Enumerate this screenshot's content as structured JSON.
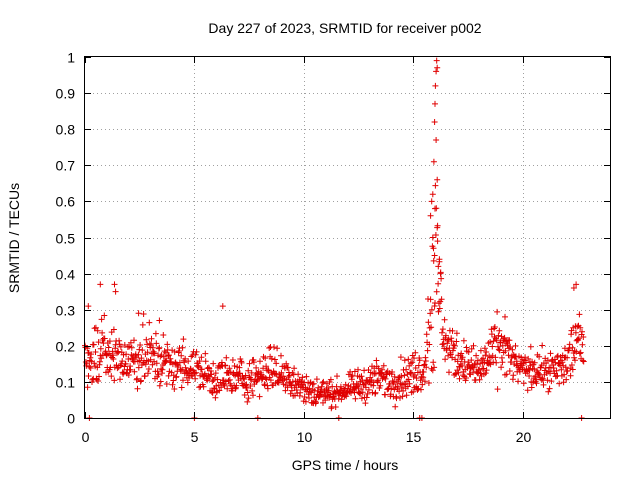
{
  "chart_data": {
    "type": "scatter",
    "title": "Day 227 of 2023, SRMTID for receiver p002",
    "xlabel": "GPS time / hours",
    "ylabel": "SRMTID / TECUs",
    "xlim": [
      0,
      24
    ],
    "ylim": [
      0,
      1
    ],
    "x_ticks": [
      0,
      5,
      10,
      15,
      20
    ],
    "x_tick_labels": [
      "0",
      "5",
      "10",
      "15",
      "20"
    ],
    "y_ticks": [
      0,
      0.1,
      0.2,
      0.3,
      0.4,
      0.5,
      0.6,
      0.7,
      0.8,
      0.9,
      1
    ],
    "y_tick_labels": [
      "0",
      "0.1",
      "0.2",
      "0.3",
      "0.4",
      "0.5",
      "0.6",
      "0.7",
      "0.8",
      "0.9",
      "1"
    ],
    "grid": true,
    "marker": "plus",
    "series_color": "#e00000",
    "series": [
      {
        "name": "p002",
        "profile": {
          "hours": [
            0.0,
            0.5,
            1.0,
            1.5,
            2.0,
            2.5,
            3.0,
            3.5,
            4.0,
            4.5,
            5.0,
            5.5,
            6.0,
            6.5,
            7.0,
            7.5,
            8.0,
            8.5,
            9.0,
            9.5,
            10.0,
            10.5,
            11.0,
            11.5,
            12.0,
            12.5,
            13.0,
            13.5,
            14.0,
            14.5,
            15.0,
            15.5,
            15.8,
            16.0,
            16.2,
            16.5,
            17.0,
            17.5,
            18.0,
            18.5,
            19.0,
            19.5,
            20.0,
            20.5,
            21.0,
            21.5,
            22.0,
            22.3,
            22.5,
            22.8
          ],
          "center": [
            0.15,
            0.17,
            0.18,
            0.17,
            0.16,
            0.17,
            0.17,
            0.16,
            0.14,
            0.15,
            0.14,
            0.12,
            0.11,
            0.11,
            0.11,
            0.11,
            0.12,
            0.14,
            0.12,
            0.11,
            0.08,
            0.07,
            0.07,
            0.07,
            0.08,
            0.09,
            0.1,
            0.11,
            0.1,
            0.11,
            0.12,
            0.14,
            0.3,
            0.4,
            0.35,
            0.2,
            0.17,
            0.15,
            0.13,
            0.17,
            0.2,
            0.16,
            0.13,
            0.14,
            0.13,
            0.13,
            0.15,
            0.19,
            0.22,
            0.18
          ],
          "spread": [
            0.06,
            0.08,
            0.09,
            0.08,
            0.07,
            0.08,
            0.08,
            0.07,
            0.05,
            0.06,
            0.05,
            0.05,
            0.05,
            0.05,
            0.05,
            0.05,
            0.05,
            0.06,
            0.05,
            0.05,
            0.04,
            0.04,
            0.03,
            0.03,
            0.03,
            0.04,
            0.04,
            0.05,
            0.04,
            0.05,
            0.05,
            0.06,
            0.2,
            0.3,
            0.15,
            0.06,
            0.06,
            0.05,
            0.05,
            0.07,
            0.08,
            0.05,
            0.04,
            0.05,
            0.04,
            0.05,
            0.06,
            0.1,
            0.08,
            0.04
          ]
        },
        "spike_points": [
          {
            "x": 15.8,
            "y": 0.56
          },
          {
            "x": 15.85,
            "y": 0.6
          },
          {
            "x": 15.9,
            "y": 0.62
          },
          {
            "x": 15.95,
            "y": 0.71
          },
          {
            "x": 15.98,
            "y": 0.82
          },
          {
            "x": 16.0,
            "y": 0.87
          },
          {
            "x": 16.02,
            "y": 0.92
          },
          {
            "x": 16.05,
            "y": 0.96
          },
          {
            "x": 16.08,
            "y": 0.99
          },
          {
            "x": 16.1,
            "y": 0.97
          },
          {
            "x": 16.05,
            "y": 0.77
          },
          {
            "x": 16.1,
            "y": 0.66
          },
          {
            "x": 16.0,
            "y": 0.58
          },
          {
            "x": 16.12,
            "y": 0.49
          },
          {
            "x": 15.9,
            "y": 0.5
          },
          {
            "x": 16.2,
            "y": 0.44
          },
          {
            "x": 16.25,
            "y": 0.4
          },
          {
            "x": 15.93,
            "y": 0.47
          },
          {
            "x": 16.15,
            "y": 0.42
          },
          {
            "x": 15.98,
            "y": 0.45
          }
        ],
        "outlier_points": [
          {
            "x": 0.7,
            "y": 0.37
          },
          {
            "x": 1.35,
            "y": 0.37
          },
          {
            "x": 1.4,
            "y": 0.35
          },
          {
            "x": 2.45,
            "y": 0.29
          },
          {
            "x": 3.4,
            "y": 0.27
          },
          {
            "x": 6.3,
            "y": 0.31
          },
          {
            "x": 22.45,
            "y": 0.37
          },
          {
            "x": 22.35,
            "y": 0.36
          },
          {
            "x": 19.2,
            "y": 0.28
          },
          {
            "x": 0.15,
            "y": 0.31
          }
        ],
        "zero_points": [
          0.2,
          5.0,
          7.9,
          11.6,
          15.3,
          15.4,
          22.7
        ]
      }
    ]
  }
}
